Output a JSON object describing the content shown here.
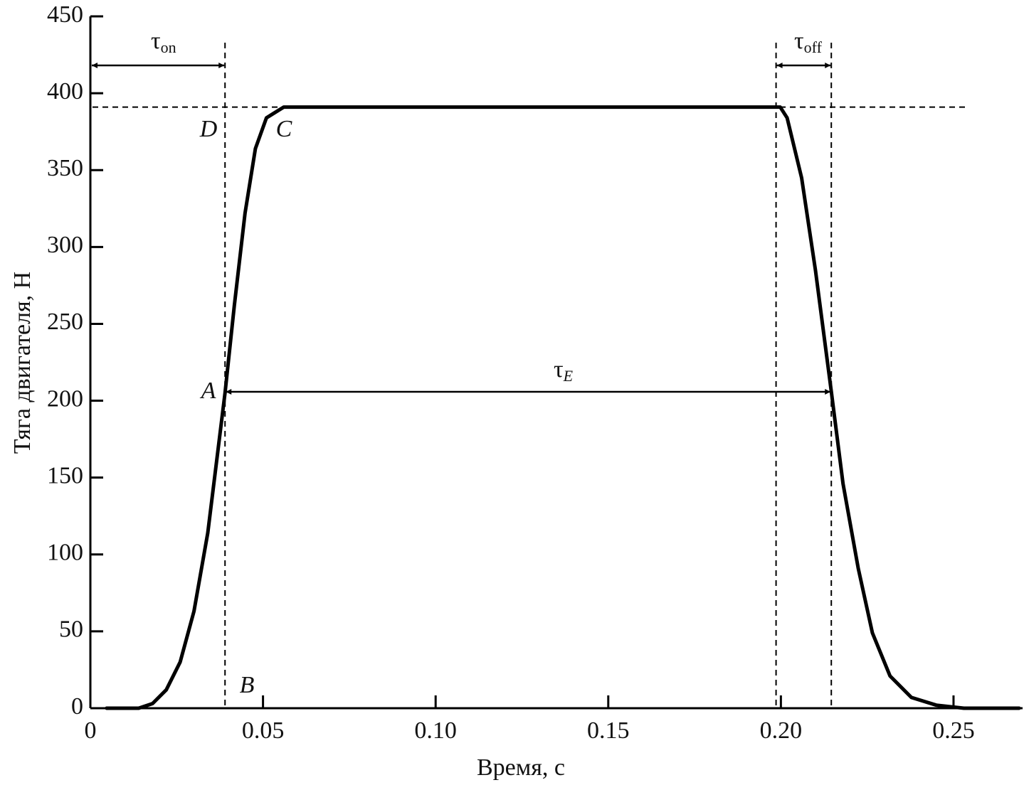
{
  "chart_data": {
    "type": "line",
    "x_label": "Время, с",
    "y_label": "Тяга двигателя, Н",
    "x": [
      0.0047,
      0.014,
      0.018,
      0.022,
      0.026,
      0.03,
      0.034,
      0.039,
      0.0417,
      0.0448,
      0.0478,
      0.051,
      0.056,
      0.1998,
      0.2018,
      0.206,
      0.21,
      0.2146,
      0.218,
      0.2224,
      0.2265,
      0.2316,
      0.2378,
      0.245,
      0.253,
      0.269
    ],
    "series": [
      {
        "name": "Тяга",
        "color": "#000000",
        "values": [
          0,
          0,
          3,
          12,
          30,
          63,
          114,
          205,
          262,
          322,
          364,
          384,
          391,
          391,
          384,
          345,
          285,
          206,
          146,
          91,
          49,
          21,
          7,
          2,
          0,
          0
        ]
      }
    ],
    "xlim": [
      0,
      0.27
    ],
    "xticks": [
      {
        "value": 0,
        "label": "0"
      },
      0.05,
      {
        "value": 0.1,
        "label": "0.10"
      },
      0.15,
      {
        "value": 0.2,
        "label": "0.20"
      },
      0.25
    ],
    "ylim": [
      0,
      450
    ],
    "yticks": [
      0,
      50,
      100,
      150,
      200,
      250,
      300,
      350,
      400,
      450
    ],
    "vlines": [
      0.039,
      0.1986,
      0.2146
    ],
    "hline": 391,
    "annotations": [
      {
        "symbol": "τ",
        "subscript": "on"
      },
      {
        "symbol": "τ",
        "subscript": "off"
      },
      {
        "symbol": "τ",
        "subscript": "E"
      }
    ],
    "point_labels": [
      "A",
      "B",
      "C",
      "D"
    ]
  }
}
